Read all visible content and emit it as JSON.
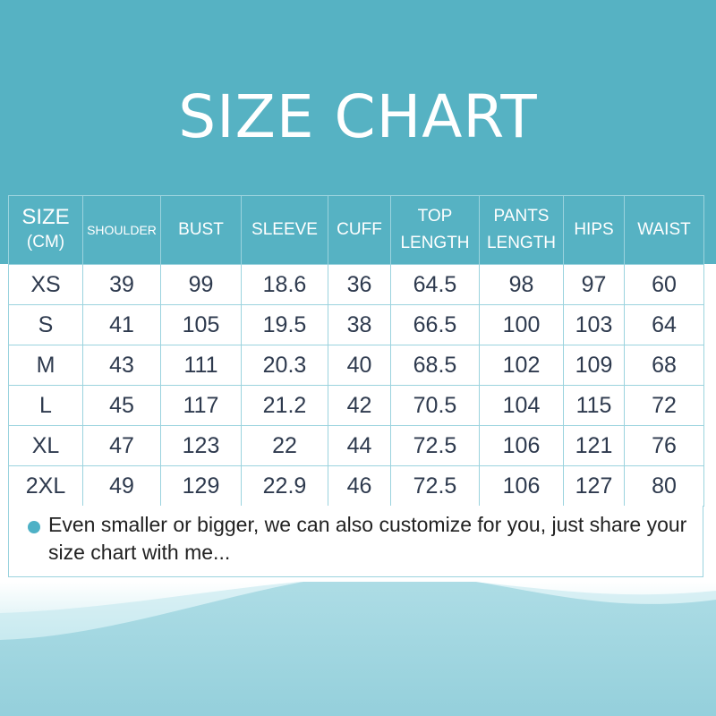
{
  "title": "SIZE CHART",
  "colors": {
    "header_band": "#56b2c3",
    "bullet": "#4eb1c6",
    "text": "#2e3a4e"
  },
  "table": {
    "size_header": "SIZE",
    "unit_header": "(CM)",
    "columns": [
      "SHOULDER",
      "BUST",
      "SLEEVE",
      "CUFF",
      "TOP LENGTH",
      "PANTS LENGTH",
      "HIPS",
      "WAIST"
    ],
    "rows": [
      [
        "XS",
        "39",
        "99",
        "18.6",
        "36",
        "64.5",
        "98",
        "97",
        "60"
      ],
      [
        "S",
        "41",
        "105",
        "19.5",
        "38",
        "66.5",
        "100",
        "103",
        "64"
      ],
      [
        "M",
        "43",
        "111",
        "20.3",
        "40",
        "68.5",
        "102",
        "109",
        "68"
      ],
      [
        "L",
        "45",
        "117",
        "21.2",
        "42",
        "70.5",
        "104",
        "115",
        "72"
      ],
      [
        "XL",
        "47",
        "123",
        "22",
        "44",
        "72.5",
        "106",
        "121",
        "76"
      ],
      [
        "2XL",
        "49",
        "129",
        "22.9",
        "46",
        "72.5",
        "106",
        "127",
        "80"
      ]
    ]
  },
  "note": {
    "icon": "bullet-dot",
    "text": "Even smaller or bigger, we can also customize for you, just share your size chart with me..."
  }
}
